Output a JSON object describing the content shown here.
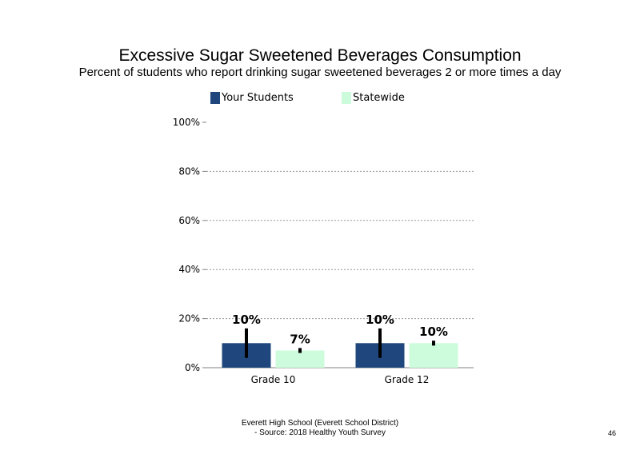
{
  "chart_data": {
    "type": "bar",
    "title": "Excessive Sugar Sweetened Beverages Consumption",
    "subtitle": "Percent of students who report drinking sugar sweetened beverages 2 or more times a day",
    "categories": [
      "Grade 10",
      "Grade 12"
    ],
    "series": [
      {
        "name": "Your Students",
        "color": "#1f477d",
        "values": [
          10,
          10
        ],
        "labels": [
          "10%",
          "10%"
        ],
        "error_low": [
          4,
          4
        ],
        "error_high": [
          16,
          16
        ]
      },
      {
        "name": "Statewide",
        "color": "#ccfcdc",
        "values": [
          7,
          10
        ],
        "labels": [
          "7%",
          "10%"
        ],
        "error_low": [
          6,
          9
        ],
        "error_high": [
          8,
          11
        ]
      }
    ],
    "ylim": [
      0,
      100
    ],
    "yticks": [
      0,
      20,
      40,
      60,
      80,
      100
    ],
    "ytick_labels": [
      "0%",
      "20%",
      "40%",
      "60%",
      "80%",
      "100%"
    ],
    "grid": true,
    "legend_position": "top"
  },
  "footer": {
    "line1": "Everett High School (Everett School District)",
    "line2": "- Source: 2018 Healthy Youth Survey"
  },
  "page_number": "46"
}
